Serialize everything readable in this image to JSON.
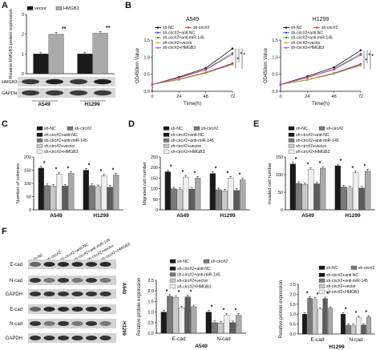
{
  "sh_colors": [
    "#1a1a1a",
    "#7a7a7a",
    "#c8c8c8",
    "#efefef",
    "#5c5c5c",
    "#aaaaaa"
  ],
  "sig": "*",
  "sig2": "**",
  "chart_data": [
    {
      "id": "A",
      "type": "bar",
      "panel_label": "A",
      "categories": [
        "A549",
        "H1299"
      ],
      "series": [
        {
          "name": "vector",
          "values": [
            1.0,
            1.0
          ],
          "color": "#1a1a1a"
        },
        {
          "name": "HMGB3",
          "values": [
            2.0,
            2.05
          ],
          "color": "#aaaaaa"
        }
      ],
      "ylabel": "Relative HMGB3 protein expression",
      "ylim": [
        0,
        3
      ],
      "yticks": [
        0,
        1,
        2,
        3
      ],
      "sig_marks": [
        "**",
        "**"
      ],
      "blot_labels": [
        "HMGB3",
        "GAPDH"
      ]
    },
    {
      "id": "B1",
      "type": "line",
      "panel_label": "B",
      "title": "A549",
      "x": [
        0,
        24,
        48,
        72
      ],
      "xticks": [
        "0",
        "24",
        "48",
        "72"
      ],
      "series": [
        {
          "name": "sh-NC",
          "values": [
            0.2,
            0.42,
            0.68,
            1.25
          ]
        },
        {
          "name": "sh-circ#2",
          "values": [
            0.2,
            0.35,
            0.55,
            0.82
          ]
        },
        {
          "name": "sh-circ#2+anti-NC",
          "values": [
            0.2,
            0.34,
            0.54,
            0.8
          ]
        },
        {
          "name": "sh-circ#2+anti-miR-145",
          "values": [
            0.2,
            0.4,
            0.64,
            1.12
          ]
        },
        {
          "name": "sh-circ#2+vector",
          "values": [
            0.2,
            0.34,
            0.53,
            0.78
          ]
        },
        {
          "name": "sh-circ#2+HMGB3",
          "values": [
            0.2,
            0.39,
            0.63,
            1.08
          ]
        }
      ],
      "xlabel": "Time(h)",
      "ylabel": "OD450nm Value",
      "ylim": [
        0.0,
        1.5
      ],
      "yticks": [
        "0.0",
        "0.5",
        "1.0",
        "1.5"
      ],
      "sig_marks": [
        "*",
        "*",
        "*"
      ]
    },
    {
      "id": "B2",
      "type": "line",
      "title": "H1299",
      "x": [
        0,
        24,
        48,
        72
      ],
      "xticks": [
        "0",
        "24",
        "48",
        "72"
      ],
      "series": [
        {
          "name": "sh-NC",
          "values": [
            0.2,
            0.44,
            0.7,
            1.2
          ]
        },
        {
          "name": "sh-circ#2",
          "values": [
            0.2,
            0.34,
            0.53,
            0.8
          ]
        },
        {
          "name": "sh-circ#2+anti-NC",
          "values": [
            0.2,
            0.33,
            0.52,
            0.78
          ]
        },
        {
          "name": "sh-circ#2+anti-miR-145",
          "values": [
            0.2,
            0.41,
            0.65,
            1.1
          ]
        },
        {
          "name": "sh-circ#2+vector",
          "values": [
            0.2,
            0.33,
            0.51,
            0.76
          ]
        },
        {
          "name": "sh-circ#2+HMGB3",
          "values": [
            0.2,
            0.4,
            0.64,
            1.06
          ]
        }
      ],
      "xlabel": "Time(h)",
      "ylabel": "OD450nm Value",
      "ylim": [
        0.0,
        1.5
      ],
      "yticks": [
        "0.0",
        "0.5",
        "1.0",
        "1.5"
      ],
      "sig_marks": [
        "*",
        "*",
        "*"
      ]
    },
    {
      "id": "C",
      "type": "bar",
      "panel_label": "C",
      "categories": [
        "A549",
        "H1299"
      ],
      "series": [
        {
          "name": "sh-NC",
          "values": [
            158,
            150
          ]
        },
        {
          "name": "sh-circ#2",
          "values": [
            92,
            92
          ]
        },
        {
          "name": "sh-circ#2+anti-NC",
          "values": [
            90,
            88
          ]
        },
        {
          "name": "sh-circ#2+anti-miR-145",
          "values": [
            135,
            128
          ]
        },
        {
          "name": "sh-circ#2+vector",
          "values": [
            90,
            86
          ]
        },
        {
          "name": "sh-circ#2+HMGB3",
          "values": [
            138,
            132
          ]
        }
      ],
      "ylabel": "Number of colonies",
      "ylim": [
        0,
        200
      ],
      "yticks": [
        0,
        50,
        100,
        150,
        200
      ],
      "sig_marks": [
        "*",
        "*",
        "*",
        "*",
        "*",
        "*"
      ]
    },
    {
      "id": "D",
      "type": "bar",
      "panel_label": "D",
      "categories": [
        "A549",
        "H1299"
      ],
      "series": [
        {
          "name": "sh-NC",
          "values": [
            180,
            172
          ]
        },
        {
          "name": "sh-circ#2",
          "values": [
            100,
            95
          ]
        },
        {
          "name": "sh-circ#2+anti-NC",
          "values": [
            96,
            90
          ]
        },
        {
          "name": "sh-circ#2+anti-miR-145",
          "values": [
            155,
            150
          ]
        },
        {
          "name": "sh-circ#2+vector",
          "values": [
            98,
            92
          ]
        },
        {
          "name": "sh-circ#2+HMGB3",
          "values": [
            150,
            142
          ]
        }
      ],
      "ylabel": "Migrated cell number",
      "ylim": [
        0,
        250
      ],
      "yticks": [
        0,
        50,
        100,
        150,
        200,
        250
      ],
      "sig_marks": [
        "*",
        "*",
        "*",
        "*",
        "*",
        "*"
      ]
    },
    {
      "id": "E",
      "type": "bar",
      "panel_label": "E",
      "categories": [
        "A549",
        "H1299"
      ],
      "series": [
        {
          "name": "sh-NC",
          "values": [
            130,
            125
          ]
        },
        {
          "name": "sh-circ#2",
          "values": [
            75,
            65
          ]
        },
        {
          "name": "sh-circ#2+anti-NC",
          "values": [
            72,
            62
          ]
        },
        {
          "name": "sh-circ#2+anti-miR-145",
          "values": [
            115,
            105
          ]
        },
        {
          "name": "sh-circ#2+vector",
          "values": [
            74,
            62
          ]
        },
        {
          "name": "sh-circ#2+HMGB3",
          "values": [
            118,
            110
          ]
        }
      ],
      "ylabel": "Invaded cell number",
      "ylim": [
        0,
        150
      ],
      "yticks": [
        0,
        50,
        100,
        150
      ],
      "sig_marks": [
        "*",
        "*",
        "*",
        "*",
        "*",
        "*"
      ]
    },
    {
      "id": "F1",
      "type": "bar",
      "panel_label": "F",
      "categories": [
        "E-cad",
        "N-cad"
      ],
      "series": [
        {
          "name": "sh-NC",
          "values": [
            1.0,
            1.0
          ]
        },
        {
          "name": "sh-circ#2",
          "values": [
            1.75,
            0.5
          ]
        },
        {
          "name": "sh-circ#2+anti-NC",
          "values": [
            1.7,
            0.48
          ]
        },
        {
          "name": "sh-circ#2+anti-miR-145",
          "values": [
            1.2,
            0.85
          ]
        },
        {
          "name": "sh-circ#2+vector",
          "values": [
            1.72,
            0.5
          ]
        },
        {
          "name": "sh-circ#2+HMGB3",
          "values": [
            1.25,
            0.85
          ]
        }
      ],
      "xlabel": "A549",
      "ylabel": "Relative protein expression",
      "ylim": [
        0,
        2.5
      ],
      "yticks": [
        "0.0",
        "0.5",
        "1.0",
        "1.5",
        "2.0",
        "2.5"
      ],
      "sig_marks": [
        "*",
        "*",
        "*",
        "*",
        "*",
        "*"
      ]
    },
    {
      "id": "F2",
      "type": "bar",
      "categories": [
        "E-cad",
        "N-cad"
      ],
      "series": [
        {
          "name": "sh-NC",
          "values": [
            1.0,
            1.0
          ]
        },
        {
          "name": "sh-circ#2",
          "values": [
            1.8,
            0.45
          ]
        },
        {
          "name": "sh-circ#2+anti-NC",
          "values": [
            1.75,
            0.42
          ]
        },
        {
          "name": "sh-circ#2+anti-miR-145",
          "values": [
            1.25,
            0.82
          ]
        },
        {
          "name": "sh-circ#2+vector",
          "values": [
            1.78,
            0.45
          ]
        },
        {
          "name": "sh-circ#2+HMGB3",
          "values": [
            1.3,
            0.85
          ]
        }
      ],
      "xlabel": "H1299",
      "ylabel": "Relative protein expression",
      "ylim": [
        0,
        2.5
      ],
      "yticks": [
        "0.0",
        "0.5",
        "1.0",
        "1.5",
        "2.0",
        "2.5"
      ],
      "sig_marks": [
        "*",
        "*",
        "*",
        "*",
        "*",
        "*"
      ]
    }
  ],
  "blotF": {
    "lane_labels": [
      "sh-NC",
      "sh-circ#2",
      "sh-circ#2+anti-NC",
      "sh-circ#2+anti-miR-145",
      "sh-circ#2+vector",
      "sh-circ#2+HMGB3"
    ],
    "row_labels": [
      "E-cad",
      "N-cad",
      "GAPDH",
      "E-cad",
      "N-cad",
      "GAPDH"
    ],
    "cell_labels": [
      "A549",
      "H1299"
    ]
  }
}
